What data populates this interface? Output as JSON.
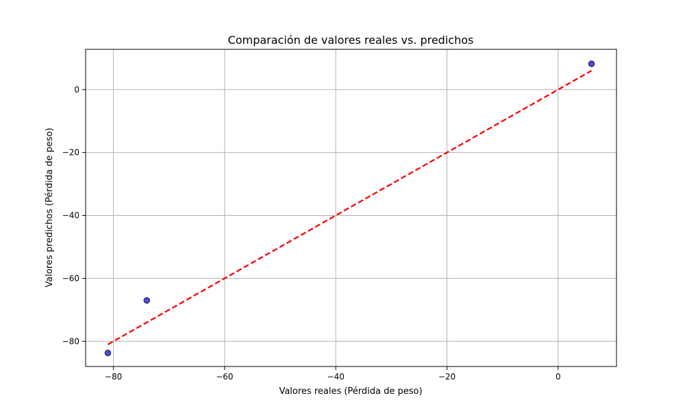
{
  "chart_data": {
    "type": "scatter",
    "title": "Comparación de valores reales vs. predichos",
    "xlabel": "Valores reales (Pérdida de peso)",
    "ylabel": "Valores predichos (Pérdida de peso)",
    "xlim": [
      -85,
      10.5
    ],
    "ylim": [
      -88,
      12.8
    ],
    "xticks": [
      -80,
      -60,
      -40,
      -20,
      0
    ],
    "yticks": [
      -80,
      -60,
      -40,
      -20,
      0
    ],
    "xtick_labels": [
      "−80",
      "−60",
      "−40",
      "−20",
      "0"
    ],
    "ytick_labels": [
      "−80",
      "−60",
      "−40",
      "−20",
      "0"
    ],
    "grid": true,
    "series": [
      {
        "kind": "scatter",
        "x": [
          -81,
          -74,
          6
        ],
        "y": [
          -83.7,
          -67,
          8.2
        ]
      },
      {
        "kind": "reference-line",
        "x": [
          -81,
          6
        ],
        "y": [
          -81,
          6
        ]
      }
    ],
    "colors": {
      "points_fill": "#4b4bdc",
      "points_edge": "#1a1a4d",
      "reference_line": "#ff0000",
      "grid": "#b0b0b0"
    }
  }
}
